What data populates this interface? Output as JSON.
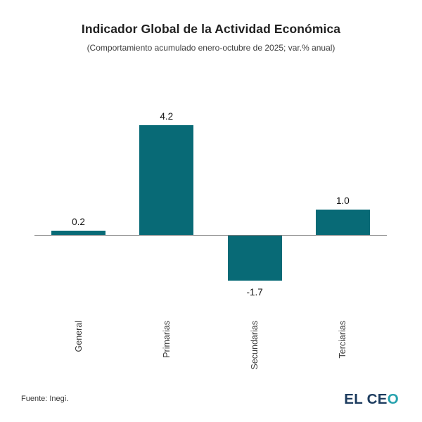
{
  "header": {
    "title": "Indicador Global de la Actividad Económica",
    "subtitle": "(Comportamiento acumulado enero-octubre de 2025; var.% anual)"
  },
  "chart_data": {
    "type": "bar",
    "title": "Indicador Global de la Actividad Económica",
    "subtitle": "(Comportamiento acumulado enero-octubre de 2025; var.% anual)",
    "categories": [
      "General",
      "Primarias",
      "Secundarias",
      "Terciarias"
    ],
    "values": [
      0.2,
      4.2,
      -1.7,
      1.0
    ],
    "xlabel": "",
    "ylabel": "",
    "ylim": [
      -2.6,
      5.2
    ],
    "baseline": 0,
    "grid": false,
    "legend": false,
    "bar_color": "#086a76",
    "axis_line_color": "#7f7f7f",
    "value_label_color": "#111111",
    "tick_label_color": "#3c3c3c"
  },
  "footer": {
    "source": "Fuente: Inegi.",
    "logo": {
      "primary": "EL CE",
      "accent": "O",
      "primary_color": "#1d3c5f",
      "accent_color": "#27a2ae"
    }
  }
}
